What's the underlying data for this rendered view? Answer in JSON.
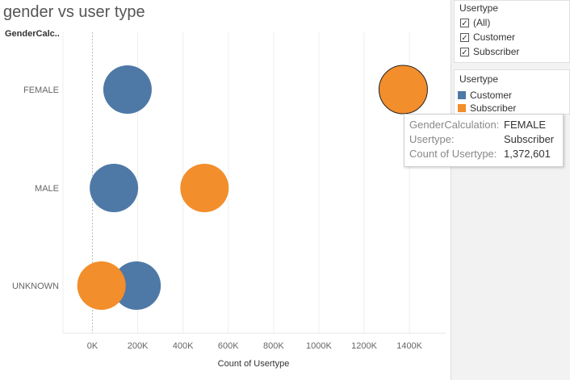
{
  "title": "gender vs user type",
  "row_header": "GenderCalc..",
  "chart_data": {
    "type": "scatter",
    "title": "gender vs user type",
    "xlabel": "Count of Usertype",
    "ylabel": "GenderCalc..",
    "categories": [
      "FEMALE",
      "MALE",
      "UNKNOWN"
    ],
    "x_ticks": [
      "0K",
      "200K",
      "400K",
      "600K",
      "800K",
      "1000K",
      "1200K",
      "1400K"
    ],
    "xlim": [
      -130000,
      1560000
    ],
    "series": [
      {
        "name": "Customer",
        "color": "#4e79a7",
        "values": [
          155000,
          95000,
          195000
        ]
      },
      {
        "name": "Subscriber",
        "color": "#f28e2b",
        "values": [
          1372601,
          495000,
          40000
        ]
      }
    ],
    "legend_position": "right"
  },
  "filter": {
    "title": "Usertype",
    "items": [
      "(All)",
      "Customer",
      "Subscriber"
    ]
  },
  "legend": {
    "title": "Usertype",
    "items": [
      {
        "label": "Customer",
        "color": "#4e79a7"
      },
      {
        "label": "Subscriber",
        "color": "#f28e2b"
      }
    ]
  },
  "tooltip": {
    "rows": [
      {
        "key": "GenderCalculation:",
        "value": "FEMALE"
      },
      {
        "key": "Usertype:",
        "value": "Subscriber"
      },
      {
        "key": "Count of Usertype:",
        "value": "1,372,601"
      }
    ]
  }
}
